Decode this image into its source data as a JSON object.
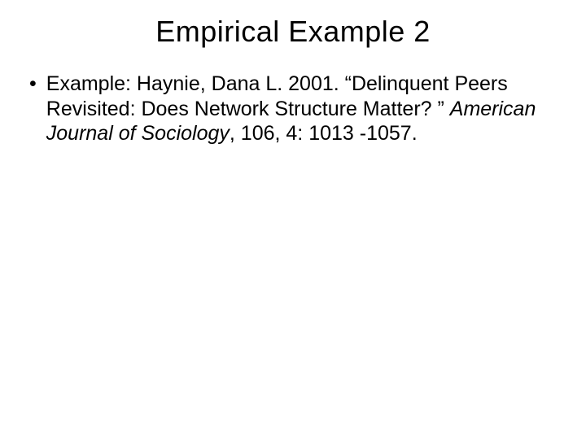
{
  "slide": {
    "title": "Empirical Example 2",
    "title_fontsize": 36,
    "bullet": {
      "marker": "•",
      "text_before": "Example:  Haynie, Dana L.  2001.  “Delinquent Peers Revisited: Does Network Structure Matter? ”  ",
      "journal": "American Journal of Sociology",
      "text_after": ", 106, 4: 1013 -1057."
    },
    "body_fontsize": 25,
    "background_color": "#ffffff",
    "text_color": "#000000",
    "font_family": "Arial"
  }
}
